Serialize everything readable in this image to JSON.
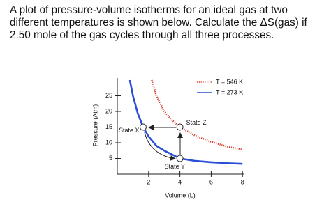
{
  "question": "A plot of pressure-volume isotherms for an ideal gas at two different temperatures is shown below. Calculate the ΔS(gas) if 2.50 mole of the gas cycles through all three processes.",
  "chart_data": {
    "type": "line",
    "xlabel": "Volume (L)",
    "ylabel": "Pressure (Atm)",
    "xlim": [
      0,
      8.2
    ],
    "ylim": [
      0,
      30
    ],
    "xticks": [
      2,
      4,
      6,
      8
    ],
    "yticks": [
      5,
      10,
      15,
      20,
      25
    ],
    "legend": "upper right",
    "series": [
      {
        "name": "T = 546 K",
        "color": "#d9382b",
        "style": "dotted",
        "x": [
          2.2,
          2.5,
          3,
          3.5,
          4,
          5,
          6,
          7,
          8
        ],
        "values": [
          30,
          25,
          20,
          17.2,
          15,
          12.2,
          10.3,
          8.8,
          7.8
        ]
      },
      {
        "name": "T = 273 K",
        "color": "#2a4fd6",
        "style": "solid",
        "x": [
          0.8,
          1,
          1.3,
          1.65,
          2,
          2.5,
          3,
          4,
          5,
          6,
          7,
          8
        ],
        "values": [
          30,
          25,
          19.5,
          15,
          12,
          9,
          7.5,
          5,
          4.2,
          3.8,
          3.5,
          3.3
        ]
      }
    ],
    "states": [
      {
        "label": "State X",
        "x": 1.65,
        "y": 15
      },
      {
        "label": "State Y",
        "x": 4,
        "y": 5
      },
      {
        "label": "State Z",
        "x": 4,
        "y": 15
      }
    ]
  }
}
